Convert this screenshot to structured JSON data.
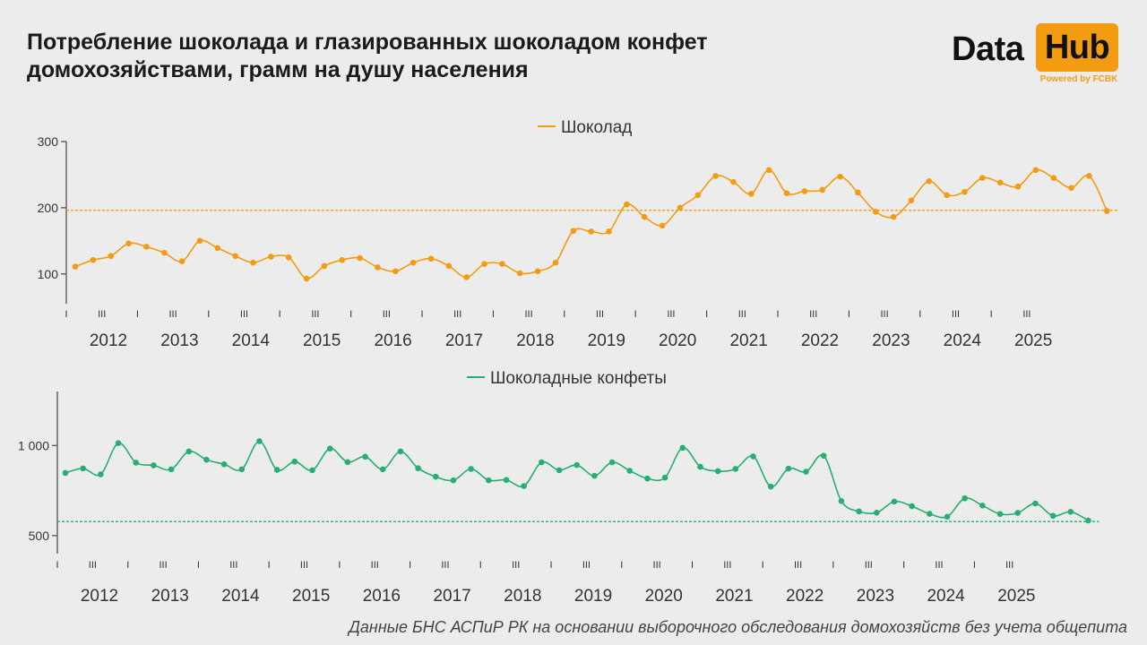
{
  "title": {
    "line1": "Потребление шоколада и глазированных шоколадом конфет",
    "line2": "домохозяйствами, грамм на душу населения"
  },
  "logo": {
    "data_text": "Data",
    "hub_text": "Hub",
    "powered_text": "Powered by FCBK",
    "accent_color": "#f39c12"
  },
  "footnote": "Данные БНС АСПиР РК на основании выборочного обследования домохозяйств без учета общепита",
  "chart_data": [
    {
      "type": "line",
      "series": [
        {
          "name": "Шоколад",
          "color": "#f39c12",
          "values": [
            111,
            121,
            127,
            146,
            141,
            132,
            119,
            150,
            139,
            127,
            117,
            126,
            125,
            93,
            112,
            121,
            124,
            110,
            104,
            117,
            123,
            112,
            95,
            115,
            115,
            101,
            104,
            117,
            165,
            164,
            164,
            205,
            186,
            173,
            200,
            219,
            248,
            239,
            221,
            257,
            222,
            225,
            227,
            247,
            223,
            194,
            186,
            211,
            240,
            219,
            224,
            245,
            238,
            232,
            257,
            245,
            230,
            248,
            195
          ]
        }
      ],
      "reference_line": 196,
      "ylim": [
        55,
        300
      ],
      "yticks": [
        "100",
        "200",
        "300"
      ],
      "ytick_values": [
        100,
        200,
        300
      ],
      "quarter_labels": [
        "I",
        "III"
      ],
      "year_labels": [
        "2012",
        "2013",
        "2014",
        "2015",
        "2016",
        "2017",
        "2018",
        "2019",
        "2020",
        "2021",
        "2022",
        "2023",
        "2024",
        "2025"
      ],
      "legend_position": "top-center"
    },
    {
      "type": "line",
      "series": [
        {
          "name": "Шоколадные конфеты",
          "color": "#27ae73",
          "values": [
            848,
            873,
            840,
            1013,
            905,
            890,
            868,
            967,
            921,
            896,
            868,
            1024,
            865,
            911,
            863,
            983,
            908,
            938,
            868,
            967,
            874,
            827,
            807,
            870,
            807,
            809,
            775,
            907,
            863,
            892,
            832,
            907,
            860,
            817,
            822,
            987,
            882,
            858,
            870,
            940,
            772,
            872,
            855,
            943,
            692,
            634,
            627,
            689,
            663,
            621,
            605,
            707,
            667,
            620,
            626,
            678,
            610,
            632,
            584
          ]
        }
      ],
      "reference_line": 578,
      "ylim": [
        400,
        1300
      ],
      "yticks": [
        "1 000",
        "500"
      ],
      "ytick_values": [
        1000,
        500
      ],
      "quarter_labels": [
        "I",
        "III"
      ],
      "year_labels": [
        "2012",
        "2013",
        "2014",
        "2015",
        "2016",
        "2017",
        "2018",
        "2019",
        "2020",
        "2021",
        "2022",
        "2023",
        "2024",
        "2025"
      ],
      "legend_position": "top-center"
    }
  ]
}
